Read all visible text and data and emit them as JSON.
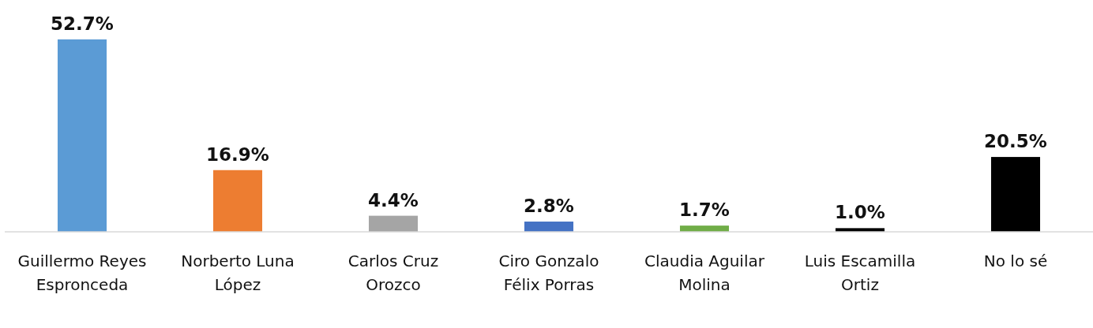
{
  "chart_data": {
    "type": "bar",
    "categories": [
      "Guillermo Reyes Espronceda",
      "Norberto Luna López",
      "Carlos Cruz Orozco",
      "Ciro Gonzalo Félix Porras",
      "Claudia Aguilar Molina",
      "Luis Escamilla Ortiz",
      "No lo sé"
    ],
    "values": [
      52.7,
      16.9,
      4.4,
      2.8,
      1.7,
      1.0,
      20.5
    ],
    "colors": [
      "#5b9bd5",
      "#ed7d31",
      "#a5a5a5",
      "#4472c4",
      "#70ad47",
      "#000000",
      "#000000"
    ],
    "value_labels": [
      "52.7%",
      "16.9%",
      "4.4%",
      "2.8%",
      "1.7%",
      "1.0%",
      "20.5%"
    ],
    "grid": false
  }
}
